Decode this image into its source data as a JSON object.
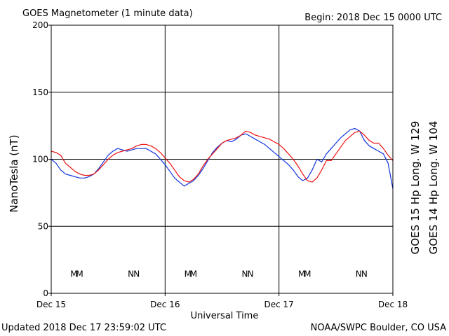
{
  "header": {
    "title": "GOES Magnetometer (1 minute data)",
    "begin": "Begin:  2018 Dec 15 0000 UTC"
  },
  "footer": {
    "updated": "Updated 2018 Dec 17 23:59:02 UTC",
    "source": "NOAA/SWPC Boulder, CO USA"
  },
  "colors": {
    "goes15": "#ee1111",
    "goes14": "#1133dd"
  },
  "chart_data": {
    "type": "line",
    "title": "GOES Magnetometer (1 minute data)",
    "xlabel": "Universal Time",
    "ylabel": "NanoTesla (nT)",
    "xlim": [
      0,
      72
    ],
    "ylim": [
      0,
      200
    ],
    "y_ticks": [
      0,
      50,
      100,
      150,
      200
    ],
    "x_ticks": [
      {
        "label": "Dec 15",
        "hour": 0
      },
      {
        "label": "Dec 16",
        "hour": 24
      },
      {
        "label": "Dec 17",
        "hour": 48
      },
      {
        "label": "Dec 18",
        "hour": 72
      }
    ],
    "grid": true,
    "legend_position": "right",
    "series": [
      {
        "name": "GOES 15 Hp  Long. W 129",
        "color": "#ee1111",
        "x": [
          0,
          1,
          2,
          3,
          4,
          5,
          6,
          7,
          8,
          9,
          10,
          11,
          12,
          13,
          14,
          15,
          16,
          17,
          18,
          19,
          20,
          21,
          22,
          23,
          24,
          25,
          26,
          27,
          28,
          29,
          30,
          31,
          32,
          33,
          34,
          35,
          36,
          37,
          38,
          39,
          40,
          41,
          42,
          43,
          44,
          45,
          46,
          47,
          48,
          49,
          50,
          51,
          52,
          53,
          54,
          55,
          56,
          57,
          58,
          59,
          60,
          61,
          62,
          63,
          64,
          65,
          66,
          67,
          68,
          69,
          70,
          71,
          72
        ],
        "values": [
          106,
          105,
          103,
          97,
          94,
          91,
          89,
          88,
          88,
          89,
          92,
          96,
          100,
          103,
          105,
          106,
          107,
          108,
          110,
          111,
          111,
          110,
          108,
          105,
          101,
          97,
          92,
          87,
          84,
          83,
          85,
          89,
          95,
          100,
          104,
          108,
          112,
          114,
          115,
          116,
          118,
          121,
          120,
          118,
          117,
          116,
          115,
          113,
          111,
          108,
          104,
          100,
          95,
          89,
          84,
          83,
          86,
          92,
          99,
          99,
          104,
          109,
          114,
          117,
          120,
          121,
          118,
          114,
          112,
          112,
          108,
          103,
          99
        ]
      },
      {
        "name": "GOES 14 Hp  Long. W 104",
        "color": "#1133dd",
        "x": [
          0,
          1,
          2,
          3,
          4,
          5,
          6,
          7,
          8,
          9,
          10,
          11,
          12,
          13,
          14,
          15,
          16,
          17,
          18,
          19,
          20,
          21,
          22,
          23,
          24,
          25,
          26,
          27,
          28,
          29,
          30,
          31,
          32,
          33,
          34,
          35,
          36,
          37,
          38,
          39,
          40,
          41,
          42,
          43,
          44,
          45,
          46,
          47,
          48,
          49,
          50,
          51,
          52,
          53,
          54,
          55,
          56,
          57,
          58,
          59,
          60,
          61,
          62,
          63,
          64,
          65,
          66,
          67,
          68,
          69,
          70,
          71,
          72
        ],
        "values": [
          100,
          97,
          92,
          89,
          88,
          87,
          86,
          86,
          87,
          89,
          93,
          98,
          103,
          106,
          108,
          107,
          106,
          107,
          108,
          108,
          108,
          106,
          104,
          100,
          96,
          91,
          86,
          83,
          80,
          82,
          84,
          88,
          93,
          99,
          105,
          109,
          112,
          114,
          113,
          115,
          118,
          119,
          117,
          115,
          113,
          111,
          108,
          105,
          102,
          99,
          96,
          92,
          87,
          84,
          86,
          92,
          100,
          98,
          104,
          108,
          112,
          116,
          119,
          122,
          123,
          121,
          114,
          110,
          108,
          106,
          104,
          97,
          78
        ]
      }
    ],
    "annotations": [
      {
        "label": "M",
        "hour": 4.8,
        "series": "GOES 14 Hp  Long. W 104"
      },
      {
        "label": "M",
        "hour": 6.0,
        "series": "GOES 15 Hp  Long. W 129"
      },
      {
        "label": "N",
        "hour": 16.8,
        "series": "GOES 14 Hp  Long. W 104"
      },
      {
        "label": "N",
        "hour": 18.0,
        "series": "GOES 15 Hp  Long. W 129"
      },
      {
        "label": "M",
        "hour": 28.8,
        "series": "GOES 14 Hp  Long. W 104"
      },
      {
        "label": "M",
        "hour": 30.0,
        "series": "GOES 15 Hp  Long. W 129"
      },
      {
        "label": "N",
        "hour": 40.8,
        "series": "GOES 14 Hp  Long. W 104"
      },
      {
        "label": "N",
        "hour": 42.0,
        "series": "GOES 15 Hp  Long. W 129"
      },
      {
        "label": "M",
        "hour": 52.8,
        "series": "GOES 14 Hp  Long. W 104"
      },
      {
        "label": "M",
        "hour": 54.0,
        "series": "GOES 15 Hp  Long. W 129"
      },
      {
        "label": "N",
        "hour": 64.8,
        "series": "GOES 14 Hp  Long. W 104"
      },
      {
        "label": "N",
        "hour": 66.0,
        "series": "GOES 15 Hp  Long. W 129"
      }
    ],
    "annotation_level": 15
  }
}
